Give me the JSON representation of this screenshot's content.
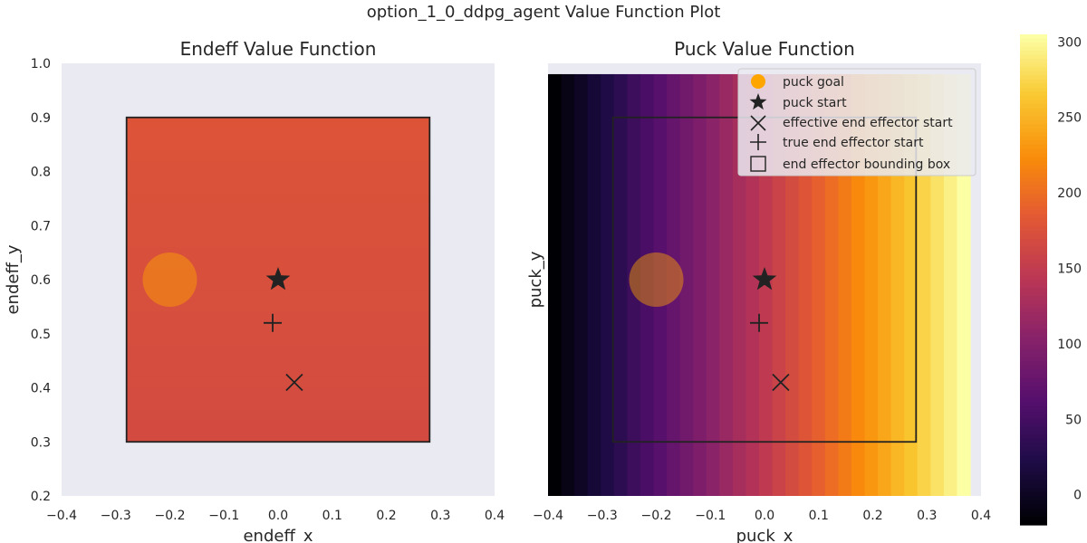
{
  "figure": {
    "suptitle": "option_1_0_ddpg_agent Value Function Plot"
  },
  "chart_data": [
    {
      "type": "heatmap",
      "title": "Endeff Value Function",
      "xlabel": "endeff_x",
      "ylabel": "endeff_y",
      "xlim": [
        -0.4,
        0.4
      ],
      "ylim": [
        0.2,
        1.0
      ],
      "xticks": [
        "−0.4",
        "−0.3",
        "−0.2",
        "−0.1",
        "0.0",
        "0.1",
        "0.2",
        "0.3",
        "0.4"
      ],
      "yticks": [
        "0.2",
        "0.3",
        "0.4",
        "0.5",
        "0.6",
        "0.7",
        "0.8",
        "0.9",
        "1.0"
      ],
      "heatmap_extent": {
        "x": [
          -0.28,
          0.28
        ],
        "y": [
          0.3,
          0.9
        ]
      },
      "value_range": [
        168,
        178
      ],
      "value_trend": "nearly constant, slightly higher toward top",
      "markers": {
        "puck_goal": {
          "x": -0.2,
          "y": 0.6
        },
        "puck_start": {
          "x": 0.0,
          "y": 0.6
        },
        "effective_end_effector_start": {
          "x": 0.03,
          "y": 0.41
        },
        "true_end_effector_start": {
          "x": -0.01,
          "y": 0.52
        }
      },
      "bounding_box": {
        "x": [
          -0.28,
          0.28
        ],
        "y": [
          0.3,
          0.9
        ]
      }
    },
    {
      "type": "heatmap",
      "title": "Puck Value Function",
      "xlabel": "puck_x",
      "ylabel": "puck_y",
      "xlim": [
        -0.4,
        0.4
      ],
      "ylim": [
        0.2,
        1.0
      ],
      "xticks": [
        "−0.4",
        "−0.3",
        "−0.2",
        "−0.1",
        "0.0",
        "0.1",
        "0.2",
        "0.3",
        "0.4"
      ],
      "heatmap_extent": {
        "x": [
          -0.4,
          0.38
        ],
        "y": [
          0.2,
          0.98
        ]
      },
      "columns": 32,
      "value_range": [
        -20,
        305
      ],
      "value_trend": "increases with puck_x, constant in puck_y",
      "markers": {
        "puck_goal": {
          "x": -0.2,
          "y": 0.6
        },
        "puck_start": {
          "x": 0.0,
          "y": 0.6
        },
        "effective_end_effector_start": {
          "x": 0.03,
          "y": 0.41
        },
        "true_end_effector_start": {
          "x": -0.01,
          "y": 0.52
        }
      },
      "bounding_box": {
        "x": [
          -0.28,
          0.28
        ],
        "y": [
          0.3,
          0.9
        ]
      },
      "legend": {
        "placement": "upper-right",
        "entries": [
          {
            "label": "puck goal",
            "marker": "circle"
          },
          {
            "label": "puck start",
            "marker": "star"
          },
          {
            "label": "effective end effector start",
            "marker": "x"
          },
          {
            "label": "true end effector start",
            "marker": "plus"
          },
          {
            "label": "end effector bounding box",
            "marker": "square"
          }
        ]
      }
    }
  ],
  "colorbar": {
    "colormap": "inferno",
    "range": [
      -20,
      305
    ],
    "ticks": [
      0,
      50,
      100,
      150,
      200,
      250,
      300
    ],
    "tick_labels": [
      "0",
      "50",
      "100",
      "150",
      "200",
      "250",
      "300"
    ]
  },
  "colors": {
    "axes_face": "#eaeaf2",
    "marker_dark": "#222222",
    "goal_fill": "#ffa500",
    "box_edge": "#222222"
  }
}
